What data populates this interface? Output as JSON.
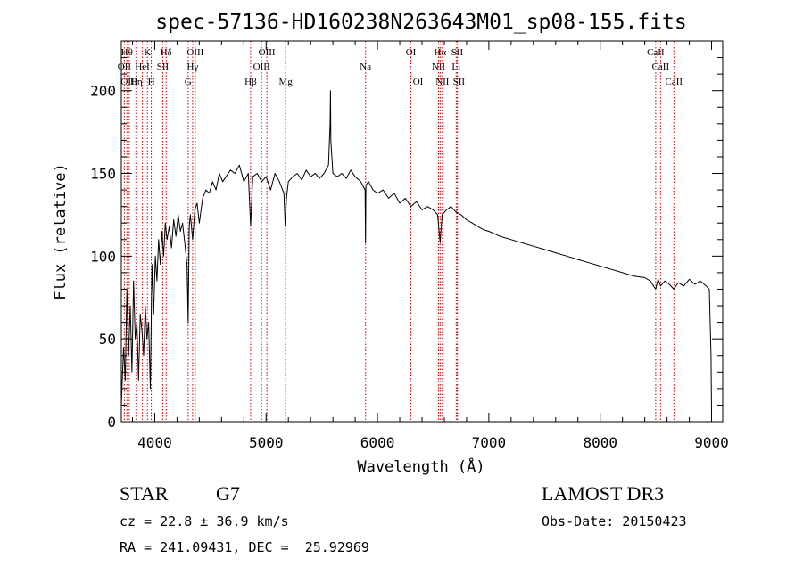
{
  "chart_data": {
    "type": "line",
    "title": "spec-57136-HD160238N263643M01_sp08-155.fits",
    "xlabel": "Wavelength (Å)",
    "ylabel": "Flux (relative)",
    "xlim": [
      3700,
      9100
    ],
    "ylim": [
      0,
      230
    ],
    "x_ticks": [
      4000,
      5000,
      6000,
      7000,
      8000,
      9000
    ],
    "y_ticks": [
      0,
      50,
      100,
      150,
      200
    ],
    "grid": false,
    "series": [
      {
        "name": "flux",
        "x": [
          3700,
          3720,
          3735,
          3750,
          3765,
          3780,
          3795,
          3810,
          3825,
          3840,
          3855,
          3870,
          3885,
          3900,
          3915,
          3930,
          3945,
          3960,
          3975,
          3990,
          4005,
          4020,
          4035,
          4050,
          4065,
          4080,
          4095,
          4110,
          4130,
          4150,
          4170,
          4190,
          4210,
          4230,
          4250,
          4270,
          4290,
          4300,
          4310,
          4320,
          4340,
          4360,
          4380,
          4400,
          4430,
          4460,
          4490,
          4520,
          4550,
          4580,
          4610,
          4640,
          4680,
          4720,
          4760,
          4800,
          4840,
          4861,
          4880,
          4920,
          4960,
          5000,
          5040,
          5080,
          5120,
          5160,
          5172,
          5183,
          5200,
          5240,
          5280,
          5320,
          5360,
          5400,
          5440,
          5480,
          5520,
          5560,
          5575,
          5578,
          5581,
          5600,
          5640,
          5680,
          5720,
          5760,
          5800,
          5850,
          5889,
          5893,
          5896,
          5920,
          5960,
          6000,
          6050,
          6100,
          6150,
          6200,
          6250,
          6300,
          6350,
          6400,
          6450,
          6500,
          6540,
          6563,
          6580,
          6620,
          6660,
          6700,
          6750,
          6800,
          6850,
          6900,
          6950,
          7000,
          7100,
          7200,
          7300,
          7400,
          7500,
          7600,
          7700,
          7800,
          7900,
          8000,
          8100,
          8200,
          8300,
          8400,
          8450,
          8498,
          8520,
          8542,
          8580,
          8620,
          8662,
          8700,
          8750,
          8800,
          8850,
          8900,
          8950,
          8980,
          8995,
          9000
        ],
        "values": [
          10,
          45,
          25,
          80,
          40,
          70,
          30,
          85,
          50,
          60,
          25,
          65,
          55,
          40,
          70,
          50,
          60,
          20,
          95,
          65,
          100,
          85,
          110,
          95,
          115,
          100,
          120,
          110,
          118,
          105,
          122,
          112,
          125,
          115,
          120,
          108,
          95,
          60,
          118,
          125,
          110,
          128,
          132,
          120,
          135,
          140,
          138,
          145,
          140,
          150,
          145,
          148,
          152,
          150,
          155,
          145,
          150,
          118,
          148,
          150,
          145,
          148,
          140,
          150,
          145,
          138,
          118,
          135,
          145,
          148,
          150,
          146,
          152,
          148,
          150,
          147,
          150,
          155,
          180,
          200,
          170,
          150,
          148,
          150,
          147,
          152,
          148,
          145,
          140,
          108,
          143,
          145,
          140,
          138,
          140,
          135,
          138,
          132,
          135,
          130,
          133,
          128,
          130,
          128,
          125,
          108,
          125,
          128,
          130,
          127,
          125,
          122,
          120,
          118,
          116,
          115,
          112,
          110,
          108,
          106,
          104,
          102,
          100,
          98,
          96,
          94,
          92,
          90,
          88,
          87,
          85,
          80,
          86,
          82,
          85,
          83,
          80,
          84,
          82,
          86,
          83,
          85,
          82,
          80,
          40,
          5
        ]
      }
    ],
    "line_markers": [
      {
        "x": 3727,
        "row": 2,
        "label": "OII"
      },
      {
        "x": 3750,
        "row": 1,
        "label": "Hθ"
      },
      {
        "x": 3771,
        "row": 3,
        "label": "OIII"
      },
      {
        "x": 3835,
        "row": 3,
        "label": "Hη"
      },
      {
        "x": 3889,
        "row": 2,
        "label": "HeI"
      },
      {
        "x": 3934,
        "row": 1,
        "label": "K"
      },
      {
        "x": 3969,
        "row": 3,
        "label": "H"
      },
      {
        "x": 4072,
        "row": 2,
        "label": "SII"
      },
      {
        "x": 4102,
        "row": 1,
        "label": "Hδ"
      },
      {
        "x": 4300,
        "row": 3,
        "label": "G"
      },
      {
        "x": 4340,
        "row": 2,
        "label": "Hγ"
      },
      {
        "x": 4364,
        "row": 1,
        "label": "OIII"
      },
      {
        "x": 4861,
        "row": 3,
        "label": "Hβ"
      },
      {
        "x": 4959,
        "row": 2,
        "label": "OIII"
      },
      {
        "x": 5007,
        "row": 1,
        "label": "OIII"
      },
      {
        "x": 5175,
        "row": 3,
        "label": "Mg"
      },
      {
        "x": 5893,
        "row": 2,
        "label": "Na"
      },
      {
        "x": 6300,
        "row": 1,
        "label": "OI"
      },
      {
        "x": 6364,
        "row": 3,
        "label": "OI"
      },
      {
        "x": 6548,
        "row": 2,
        "label": "NII"
      },
      {
        "x": 6563,
        "row": 1,
        "label": "Hα"
      },
      {
        "x": 6583,
        "row": 3,
        "label": "NII"
      },
      {
        "x": 6707,
        "row": 2,
        "label": "Li"
      },
      {
        "x": 6716,
        "row": 1,
        "label": "SII"
      },
      {
        "x": 6731,
        "row": 3,
        "label": "SII"
      },
      {
        "x": 8498,
        "row": 1,
        "label": "CaII"
      },
      {
        "x": 8542,
        "row": 2,
        "label": "CaII"
      },
      {
        "x": 8662,
        "row": 3,
        "label": "CaII"
      }
    ]
  },
  "info": {
    "object_type": "STAR",
    "subclass": "G7",
    "velocity": "cz = 22.8 ± 36.9 km/s",
    "coords": "RA = 241.09431, DEC =  25.92969",
    "survey": "LAMOST DR3",
    "obs_date": "Obs-Date: 20150423"
  }
}
